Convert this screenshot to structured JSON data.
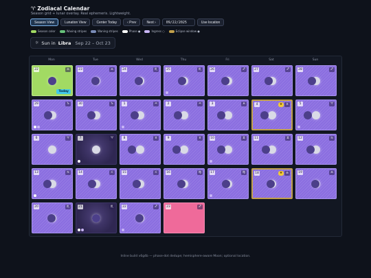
{
  "header": {
    "title": "♈ Zodiacal Calendar",
    "subtitle": "Season grid + lunar overlay. Real ephemeris. Lightweight."
  },
  "controls": {
    "season_view": "Season View",
    "lunation_view": "Lunation View",
    "center_today": "Center Today",
    "prev": "‹ Prev",
    "next": "Next ›",
    "date_value": "09/22/2025",
    "use_location": "Use location"
  },
  "legend": [
    {
      "label": "Season color",
      "color": "#a2da63"
    },
    {
      "label": "Waxing stripes",
      "color": "#67c17a"
    },
    {
      "label": "Waning stripes",
      "color": "#7b8db8"
    },
    {
      "label": "Phase ●",
      "color": "#ffffff"
    },
    {
      "label": "Ingress ○",
      "color": "#c9b6f7"
    },
    {
      "label": "Eclipse window ●",
      "color": "#c2a04b"
    }
  ],
  "sun": {
    "prefix": "Sun in",
    "sign": "Libra",
    "range": "Sep 22 – Oct 23"
  },
  "weekdays": [
    "Mon",
    "Tue",
    "Wed",
    "Thu",
    "Fri",
    "Sat",
    "Sun"
  ],
  "days": [
    {
      "num": "22",
      "glyph": "♎",
      "style": "today",
      "moon": 0
    },
    {
      "num": "23",
      "glyph": "♎",
      "style": "normal",
      "moon": 0.04
    },
    {
      "num": "24",
      "glyph": "♏",
      "style": "normal",
      "moon": 0.1
    },
    {
      "num": "25",
      "glyph": "♏",
      "style": "normal",
      "moon": 0.18,
      "dots": [
        "#c9b6f7"
      ]
    },
    {
      "num": "26",
      "glyph": "♐",
      "style": "normal",
      "moon": 0.26
    },
    {
      "num": "27",
      "glyph": "♐",
      "style": "normal",
      "moon": 0.34
    },
    {
      "num": "28",
      "glyph": "♐",
      "style": "normal",
      "moon": 0.42
    },
    {
      "num": "29",
      "glyph": "♑",
      "style": "normal",
      "moon": 0.5,
      "dots": [
        "#ffffff",
        "#c9b6f7"
      ]
    },
    {
      "num": "30",
      "glyph": "♑",
      "style": "normal",
      "moon": 0.58
    },
    {
      "num": "1",
      "glyph": "♒",
      "style": "normal",
      "moon": 0.66,
      "dots": [
        "#c9b6f7"
      ]
    },
    {
      "num": "2",
      "glyph": "♒",
      "style": "normal",
      "moon": 0.74
    },
    {
      "num": "3",
      "glyph": "♓",
      "style": "normal",
      "moon": 0.82
    },
    {
      "num": "4",
      "glyph": "♓",
      "style": "eclipse",
      "moon": 0.9,
      "star": true
    },
    {
      "num": "5",
      "glyph": "♈",
      "style": "normal",
      "moon": 0.96,
      "dots": [
        "#c9b6f7"
      ]
    },
    {
      "num": "6",
      "glyph": "♈",
      "style": "normal",
      "moon": 1
    },
    {
      "num": "7",
      "glyph": "♈",
      "style": "dark",
      "moon": 1,
      "dots": [
        "#ffffff"
      ]
    },
    {
      "num": "8",
      "glyph": "♉",
      "style": "normal",
      "moon": 0.95
    },
    {
      "num": "9",
      "glyph": "♉",
      "style": "normal",
      "moon": 0.88
    },
    {
      "num": "10",
      "glyph": "♊",
      "style": "normal",
      "moon": 0.8,
      "dots": [
        "#c9b6f7"
      ]
    },
    {
      "num": "11",
      "glyph": "♊",
      "style": "normal",
      "moon": 0.72
    },
    {
      "num": "12",
      "glyph": "♋",
      "style": "normal",
      "moon": 0.64
    },
    {
      "num": "13",
      "glyph": "♋",
      "style": "normal",
      "moon": 0.56,
      "dots": [
        "#ffffff"
      ]
    },
    {
      "num": "14",
      "glyph": "♌",
      "style": "normal",
      "moon": 0.48
    },
    {
      "num": "15",
      "glyph": "♌",
      "style": "normal",
      "moon": 0.4
    },
    {
      "num": "16",
      "glyph": "♍",
      "style": "normal",
      "moon": 0.32
    },
    {
      "num": "17",
      "glyph": "♍",
      "style": "normal",
      "moon": 0.24,
      "dots": [
        "#c9b6f7"
      ]
    },
    {
      "num": "18",
      "glyph": "♎",
      "style": "eclipse",
      "moon": 0.16,
      "star": true
    },
    {
      "num": "19",
      "glyph": "♎",
      "style": "normal",
      "moon": 0.08
    },
    {
      "num": "20",
      "glyph": "♏",
      "style": "normal",
      "moon": 0.03
    },
    {
      "num": "21",
      "glyph": "♏",
      "style": "dark",
      "moon": 0,
      "dots": [
        "#ffffff",
        "#c9b6f7"
      ]
    },
    {
      "num": "22",
      "glyph": "♐",
      "style": "normal",
      "moon": 0.02,
      "dots": [
        "#c9b6f7"
      ]
    },
    {
      "num": "23",
      "glyph": "♐",
      "style": "pink",
      "moon": null
    }
  ],
  "footer": "Inline build v6g4b — phase-dot dedupe; hemisphere-aware Moon; optional location."
}
